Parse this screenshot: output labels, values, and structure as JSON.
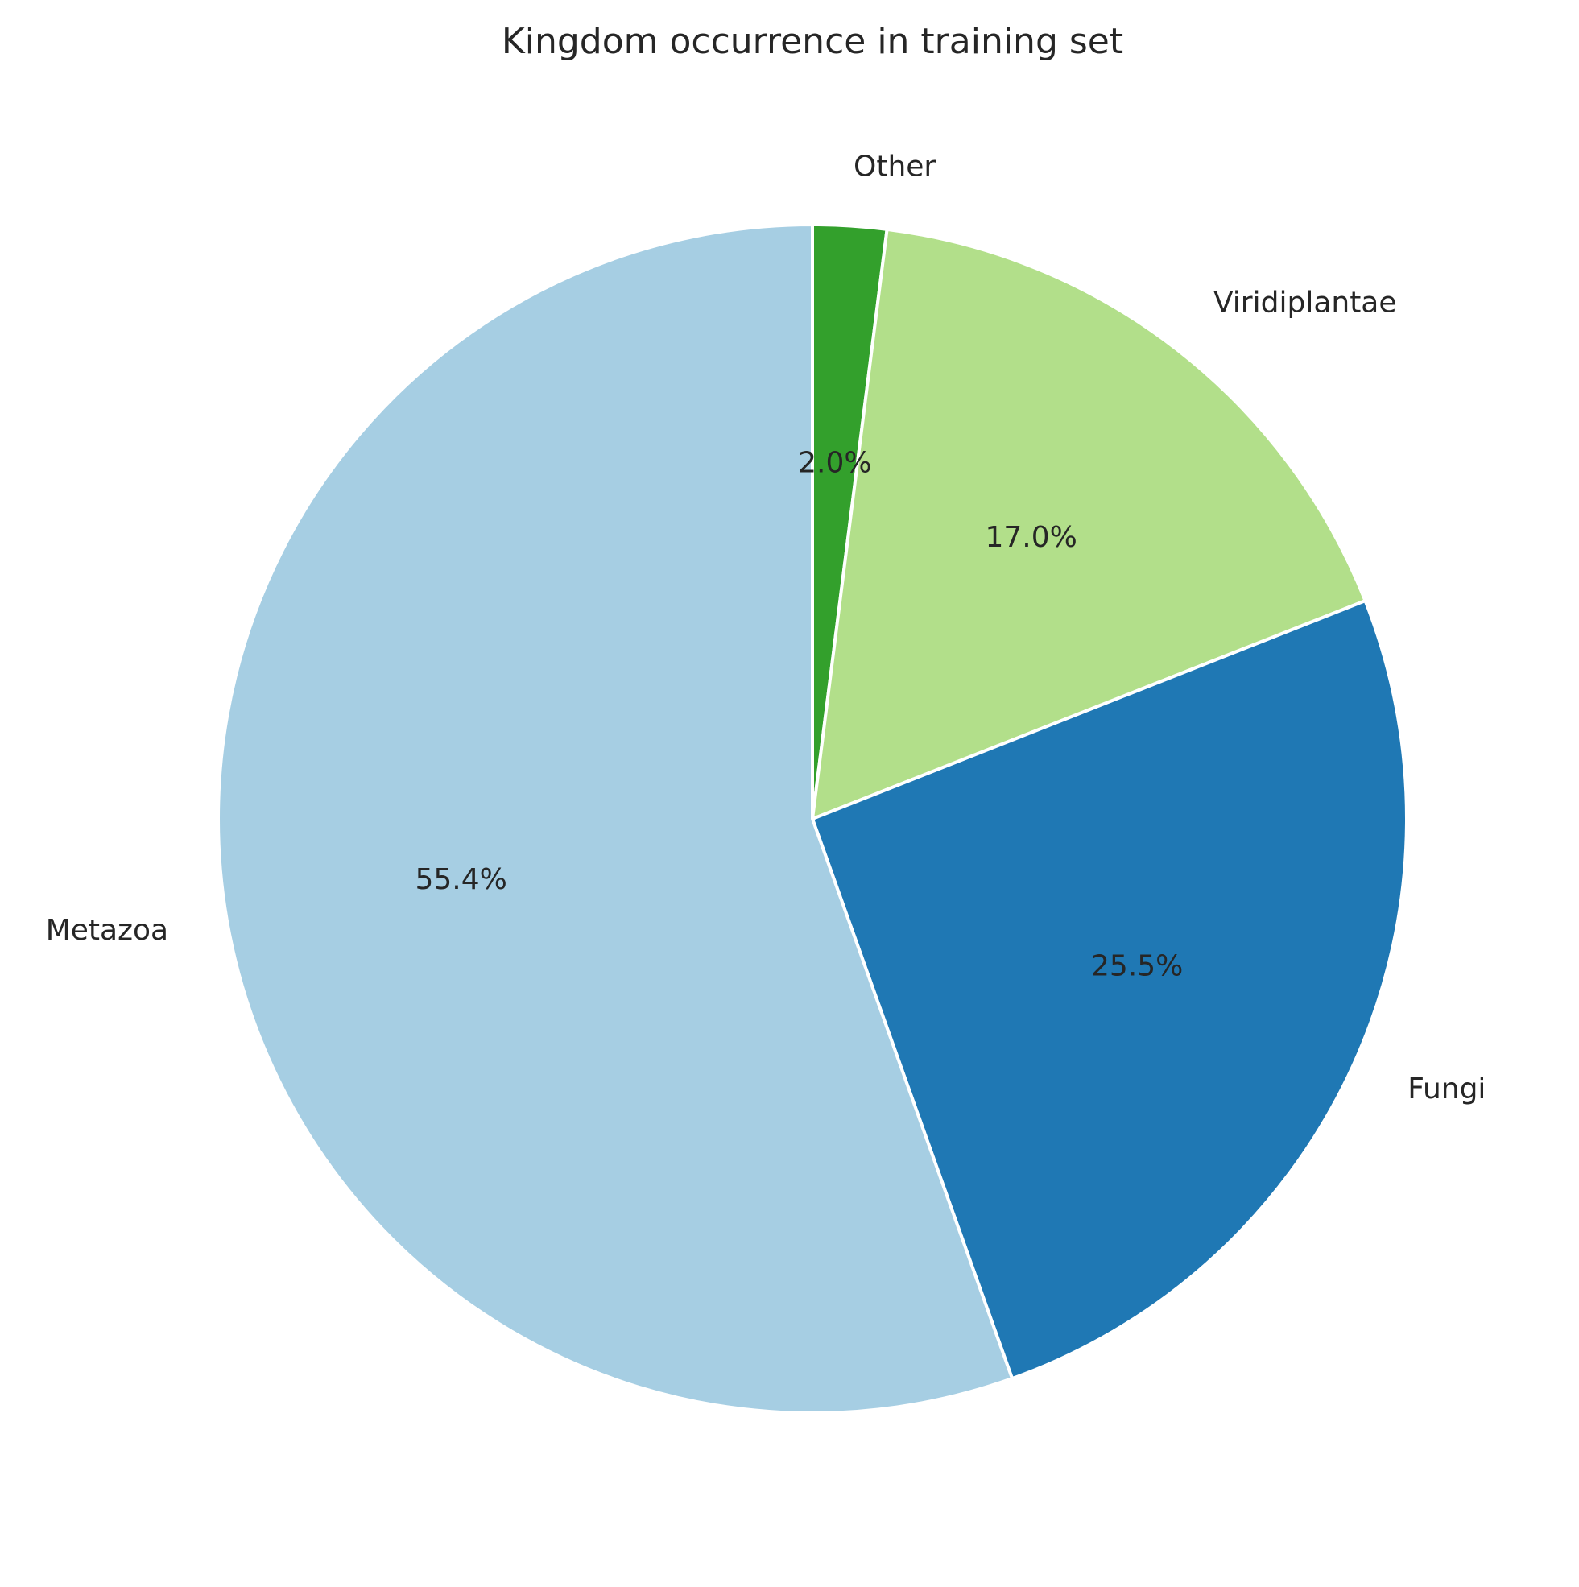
{
  "chart_data": {
    "type": "pie",
    "title": "Kingdom occurrence in training set",
    "start_angle_deg": 90,
    "direction": "clockwise",
    "slices": [
      {
        "label": "Other",
        "value": 2.0,
        "pct_label": "2.0%",
        "color": "#33a02c"
      },
      {
        "label": "Viridiplantae",
        "value": 17.0,
        "pct_label": "17.0%",
        "color": "#b2df8a"
      },
      {
        "label": "Fungi",
        "value": 25.5,
        "pct_label": "25.5%",
        "color": "#1f78b4"
      },
      {
        "label": "Metazoa",
        "value": 55.4,
        "pct_label": "55.4%",
        "color": "#a6cee3"
      }
    ],
    "edge_color": "#ffffff"
  }
}
